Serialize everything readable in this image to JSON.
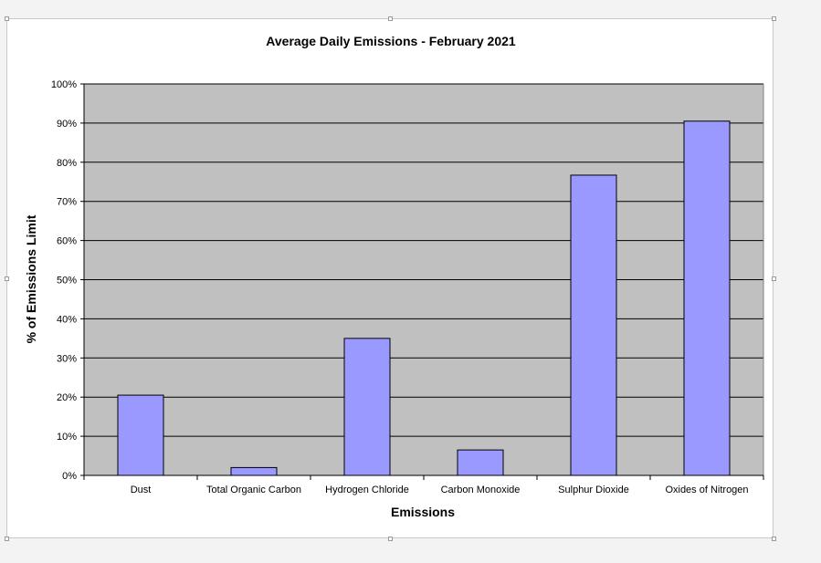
{
  "chart_data": {
    "type": "bar",
    "title": "Average Daily Emissions - February 2021",
    "xlabel": "Emissions",
    "ylabel": "% of Emissions Limit",
    "categories": [
      "Dust",
      "Total Organic Carbon",
      "Hydrogen Chloride",
      "Carbon Monoxide",
      "Sulphur Dioxide",
      "Oxides of Nitrogen"
    ],
    "values": [
      20.5,
      2,
      35,
      6.5,
      76.7,
      90.5
    ],
    "ylim": [
      0,
      100
    ],
    "yticks": [
      "0%",
      "10%",
      "20%",
      "30%",
      "40%",
      "50%",
      "60%",
      "70%",
      "80%",
      "90%",
      "100%"
    ],
    "grid": true,
    "colors": {
      "bar": "#9999ff",
      "plot_background": "#c0c0c0",
      "gridline": "#000000"
    }
  }
}
